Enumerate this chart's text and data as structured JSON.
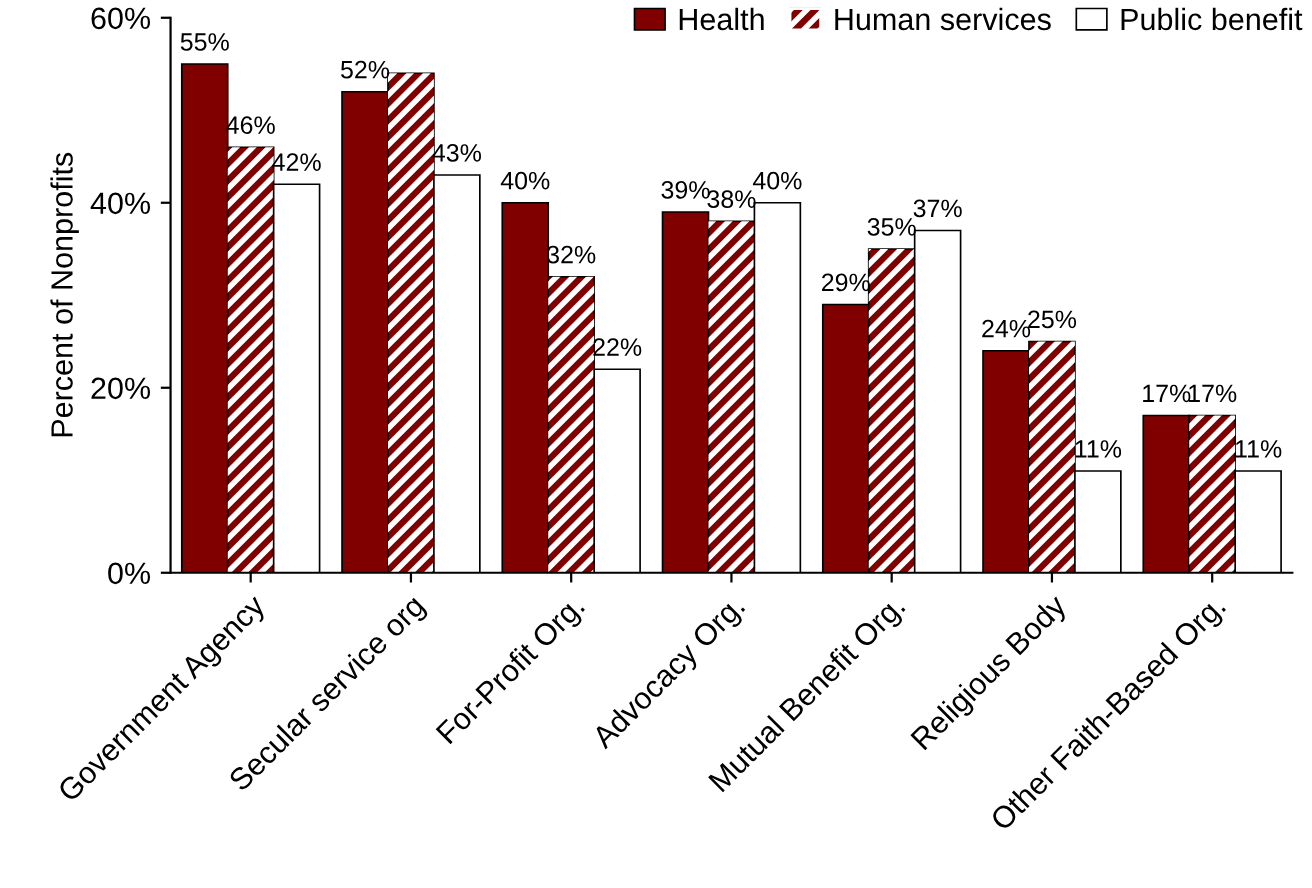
{
  "chart_data": {
    "type": "bar",
    "ylabel": "Percent of Nonprofits",
    "categories": [
      "Government Agency",
      "Secular service org",
      "For-Profit Org.",
      "Advocacy Org.",
      "Mutual Benefit Org.",
      "Religious Body",
      "Other Faith-Based Org."
    ],
    "series": [
      {
        "name": "Health",
        "color": "#800000",
        "values": [
          55,
          52,
          40,
          39,
          29,
          24,
          17
        ],
        "value_labels": [
          "55%",
          "52%",
          "40%",
          "39%",
          "29%",
          "24%",
          "17%"
        ]
      },
      {
        "name": "Human services",
        "color": "#800000",
        "values": [
          46,
          54,
          32,
          38,
          35,
          25,
          17
        ],
        "value_labels": [
          "46%",
          null,
          "32%",
          "38%",
          "35%",
          "25%",
          "17%"
        ]
      },
      {
        "name": "Public benefit",
        "color": "#ffffff",
        "values": [
          42,
          43,
          22,
          40,
          37,
          11,
          11
        ],
        "value_labels": [
          "42%",
          "43%",
          "22%",
          "40%",
          "37%",
          "11%",
          "11%"
        ]
      }
    ],
    "ylim": [
      0,
      60
    ],
    "yticks": [
      {
        "value": 0,
        "label": "0%"
      },
      {
        "value": 20,
        "label": "20%"
      },
      {
        "value": 40,
        "label": "40%"
      },
      {
        "value": 60,
        "label": "60%"
      }
    ],
    "grid": false,
    "legend": "top right"
  }
}
